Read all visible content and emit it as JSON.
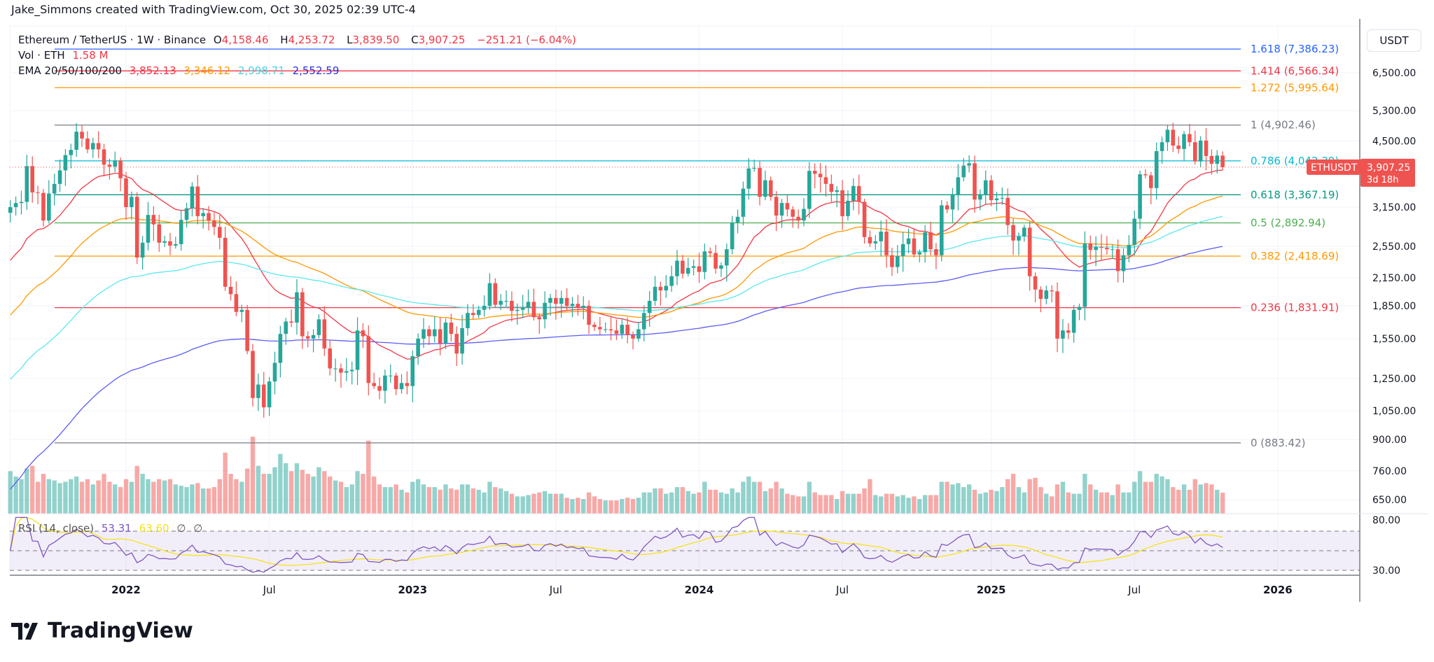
{
  "credit": "Jake_Simmons created with TradingView.com, Oct 30, 2025 02:39 UTC-4",
  "legend": {
    "symbol": "Ethereum / TetherUS · 1W · Binance",
    "o_label": "O",
    "o": "4,158.46",
    "h_label": "H",
    "h": "4,253.72",
    "l_label": "L",
    "l": "3,839.50",
    "c_label": "C",
    "c": "3,907.25",
    "change": "−251.21 (−6.04%)",
    "vol_label": "Vol · ETH",
    "vol": "1.58 M",
    "ema_label": "EMA 20/50/100/200",
    "ema_values": [
      "3,852.13",
      "3,346.12",
      "2,998.71",
      "2,552.59"
    ],
    "rsi_label": "RSI (14, close)",
    "rsi": "53.31",
    "rsi_ma": "63.60",
    "rsi_na1": "∅",
    "rsi_na2": "∅"
  },
  "axis": {
    "currency_button": "USDT"
  },
  "price_tag": {
    "symbol": "ETHUSDT",
    "price": "3,907.25",
    "countdown": "3d 18h"
  },
  "logo": "TradingView",
  "colors": {
    "up": "#26a69a",
    "down": "#ef5350",
    "ema20": "#f23645",
    "ema50": "#ff9800",
    "ema100": "#5ce8ec",
    "ema200": "#5c5cf5",
    "rsi": "#7e57c2",
    "rsi_ma": "#f5e31b"
  },
  "chart_data": {
    "type": "candlestick",
    "interval": "1W",
    "first_week": "2021-08-09",
    "scale": "log",
    "y_ticks": [
      "6,500.00",
      "5,300.00",
      "4,500.00",
      "3,150.00",
      "2,550.00",
      "2,150.00",
      "1,850.00",
      "1,550.00",
      "1,250.00",
      "1,050.00",
      "900.00",
      "760.00",
      "650.00"
    ],
    "y_tick_values": [
      6500,
      5300,
      4500,
      3150,
      2550,
      2150,
      1850,
      1550,
      1250,
      1050,
      900,
      760,
      650
    ],
    "x_ticks": [
      {
        "label": "2022",
        "week": 21
      },
      {
        "label": "Jul",
        "week": 47
      },
      {
        "label": "2023",
        "week": 73
      },
      {
        "label": "Jul",
        "week": 99
      },
      {
        "label": "2024",
        "week": 125
      },
      {
        "label": "Jul",
        "week": 151
      },
      {
        "label": "2025",
        "week": 178
      },
      {
        "label": "Jul",
        "week": 204
      },
      {
        "label": "2026",
        "week": 230
      }
    ],
    "closes": [
      3150,
      3220,
      3240,
      3930,
      3410,
      3400,
      2930,
      3390,
      3570,
      3840,
      4170,
      4290,
      4730,
      4560,
      4300,
      4450,
      4300,
      3960,
      3920,
      4050,
      3680,
      3150,
      3330,
      2400,
      2600,
      3020,
      2870,
      2600,
      2620,
      2560,
      2580,
      2940,
      3130,
      3520,
      3000,
      3050,
      2930,
      2830,
      2670,
      2050,
      1970,
      1790,
      1810,
      1450,
      1125,
      1210,
      1070,
      1230,
      1360,
      1590,
      1700,
      1690,
      1990,
      1570,
      1550,
      1580,
      1720,
      1470,
      1320,
      1320,
      1290,
      1300,
      1310,
      1620,
      1570,
      1220,
      1200,
      1170,
      1270,
      1270,
      1180,
      1220,
      1200,
      1410,
      1550,
      1630,
      1570,
      1630,
      1510,
      1690,
      1590,
      1430,
      1640,
      1780,
      1760,
      1810,
      1850,
      2090,
      1860,
      1900,
      1900,
      1800,
      1810,
      1830,
      1890,
      1740,
      1720,
      1880,
      1930,
      1870,
      1930,
      1850,
      1870,
      1830,
      1850,
      1670,
      1650,
      1630,
      1630,
      1620,
      1590,
      1670,
      1580,
      1550,
      1630,
      1780,
      1900,
      2050,
      2010,
      2060,
      2170,
      2360,
      2200,
      2270,
      2290,
      2220,
      2480,
      2460,
      2260,
      2300,
      2510,
      2900,
      2990,
      3480,
      3880,
      3890,
      3330,
      3640,
      3330,
      3010,
      3220,
      3110,
      2990,
      2930,
      3120,
      3830,
      3770,
      3700,
      3570,
      3420,
      3450,
      3000,
      3260,
      3530,
      3240,
      2680,
      2590,
      2620,
      2760,
      2430,
      2280,
      2420,
      2580,
      2660,
      2440,
      2470,
      2750,
      2510,
      2430,
      3180,
      3110,
      3360,
      3700,
      3940,
      3990,
      3280,
      3360,
      3640,
      3270,
      3300,
      3310,
      2860,
      2630,
      2690,
      2820,
      2170,
      2020,
      1920,
      2010,
      2000,
      1550,
      1620,
      1600,
      1810,
      1840,
      2590,
      2500,
      2540,
      2530,
      2510,
      2510,
      2230,
      2430,
      2570,
      2960,
      3760,
      3740,
      3490,
      4260,
      4470,
      4780,
      4390,
      4310,
      4670,
      4470,
      4030,
      4510,
      4150,
      3980,
      4160,
      3907.25
    ],
    "last_candle": {
      "open": 4158.46,
      "high": 4253.72,
      "low": 3839.5,
      "close": 3907.25
    },
    "volume_millions": [
      3.2,
      2.8,
      2.6,
      3.4,
      3.6,
      2.4,
      3.0,
      2.6,
      2.5,
      2.3,
      2.4,
      2.6,
      2.8,
      2.4,
      2.6,
      2.2,
      2.5,
      3.0,
      2.4,
      2.2,
      2.0,
      2.6,
      2.4,
      3.6,
      3.0,
      2.6,
      2.4,
      2.6,
      2.5,
      2.6,
      2.2,
      2.1,
      2.0,
      2.2,
      2.3,
      1.9,
      1.9,
      2.0,
      2.6,
      4.6,
      3.0,
      2.6,
      2.4,
      3.4,
      5.8,
      3.6,
      3.0,
      3.0,
      3.5,
      4.5,
      3.8,
      3.2,
      3.8,
      3.3,
      3.0,
      2.8,
      3.5,
      3.2,
      2.8,
      2.5,
      2.4,
      2.0,
      2.2,
      3.2,
      3.0,
      5.5,
      2.8,
      2.2,
      2.0,
      2.0,
      2.2,
      1.8,
      1.6,
      2.4,
      2.6,
      2.2,
      2.0,
      2.0,
      1.8,
      2.2,
      1.9,
      1.8,
      2.2,
      2.2,
      1.9,
      1.8,
      1.6,
      2.4,
      2.0,
      1.9,
      1.7,
      1.5,
      1.3,
      1.3,
      1.4,
      1.5,
      1.6,
      1.7,
      1.5,
      1.5,
      1.5,
      1.2,
      1.1,
      1.2,
      1.1,
      1.6,
      1.3,
      1.1,
      1.0,
      1.0,
      1.0,
      1.1,
      1.2,
      1.1,
      1.2,
      1.6,
      1.6,
      1.9,
      1.9,
      1.5,
      1.6,
      2.0,
      2.0,
      1.7,
      1.5,
      1.6,
      2.4,
      1.8,
      1.8,
      1.6,
      1.5,
      1.9,
      1.6,
      2.4,
      2.8,
      2.4,
      2.4,
      1.7,
      1.9,
      2.4,
      1.9,
      1.5,
      1.4,
      1.3,
      1.3,
      2.4,
      1.6,
      1.4,
      1.4,
      1.4,
      1.1,
      1.7,
      1.5,
      1.5,
      1.5,
      1.9,
      2.6,
      1.4,
      1.3,
      1.5,
      1.5,
      1.3,
      1.4,
      1.2,
      1.3,
      1.1,
      1.4,
      1.4,
      1.4,
      2.4,
      2.4,
      2.2,
      2.3,
      2.0,
      2.2,
      1.8,
      1.5,
      1.6,
      1.8,
      1.7,
      2.0,
      2.6,
      3.0,
      2.0,
      1.6,
      2.6,
      2.7,
      2.0,
      1.5,
      1.3,
      2.2,
      2.4,
      1.6,
      1.5,
      1.5,
      3.0,
      2.2,
      1.8,
      1.6,
      1.6,
      1.4,
      2.2,
      1.6,
      1.6,
      2.4,
      3.2,
      2.4,
      2.4,
      3.0,
      2.8,
      2.6,
      2.0,
      1.8,
      2.2,
      1.8,
      2.6,
      2.2,
      2.3,
      2.2,
      1.8,
      1.58
    ],
    "ema_periods": [
      20,
      50,
      100,
      200
    ],
    "ema_start": [
      2365,
      1760,
      1245,
      688
    ],
    "rsi_ticks": [
      "80.00",
      "30.00"
    ],
    "rsi_bands": [
      70,
      50,
      30
    ],
    "fib_levels": [
      {
        "label": "1.618 (7,386.23)",
        "value": 7386.23,
        "color": "#2962ff"
      },
      {
        "label": "1.414 (6,566.34)",
        "value": 6566.34,
        "color": "#f23645"
      },
      {
        "label": "1.272 (5,995.64)",
        "value": 5995.64,
        "color": "#ff9800"
      },
      {
        "label": "1 (4,902.46)",
        "value": 4902.46,
        "color": "#787b86"
      },
      {
        "label": "0.786 (4,042.39)",
        "value": 4042.39,
        "color": "#00bcd4"
      },
      {
        "label": "0.618 (3,367.19)",
        "value": 3367.19,
        "color": "#089981"
      },
      {
        "label": "0.5 (2,892.94)",
        "value": 2892.94,
        "color": "#4caf50"
      },
      {
        "label": "0.382 (2,418.69)",
        "value": 2418.69,
        "color": "#ff9800"
      },
      {
        "label": "0.236 (1,831.91)",
        "value": 1831.91,
        "color": "#f23645"
      },
      {
        "label": "0 (883.42)",
        "value": 883.42,
        "color": "#787b86"
      }
    ]
  }
}
